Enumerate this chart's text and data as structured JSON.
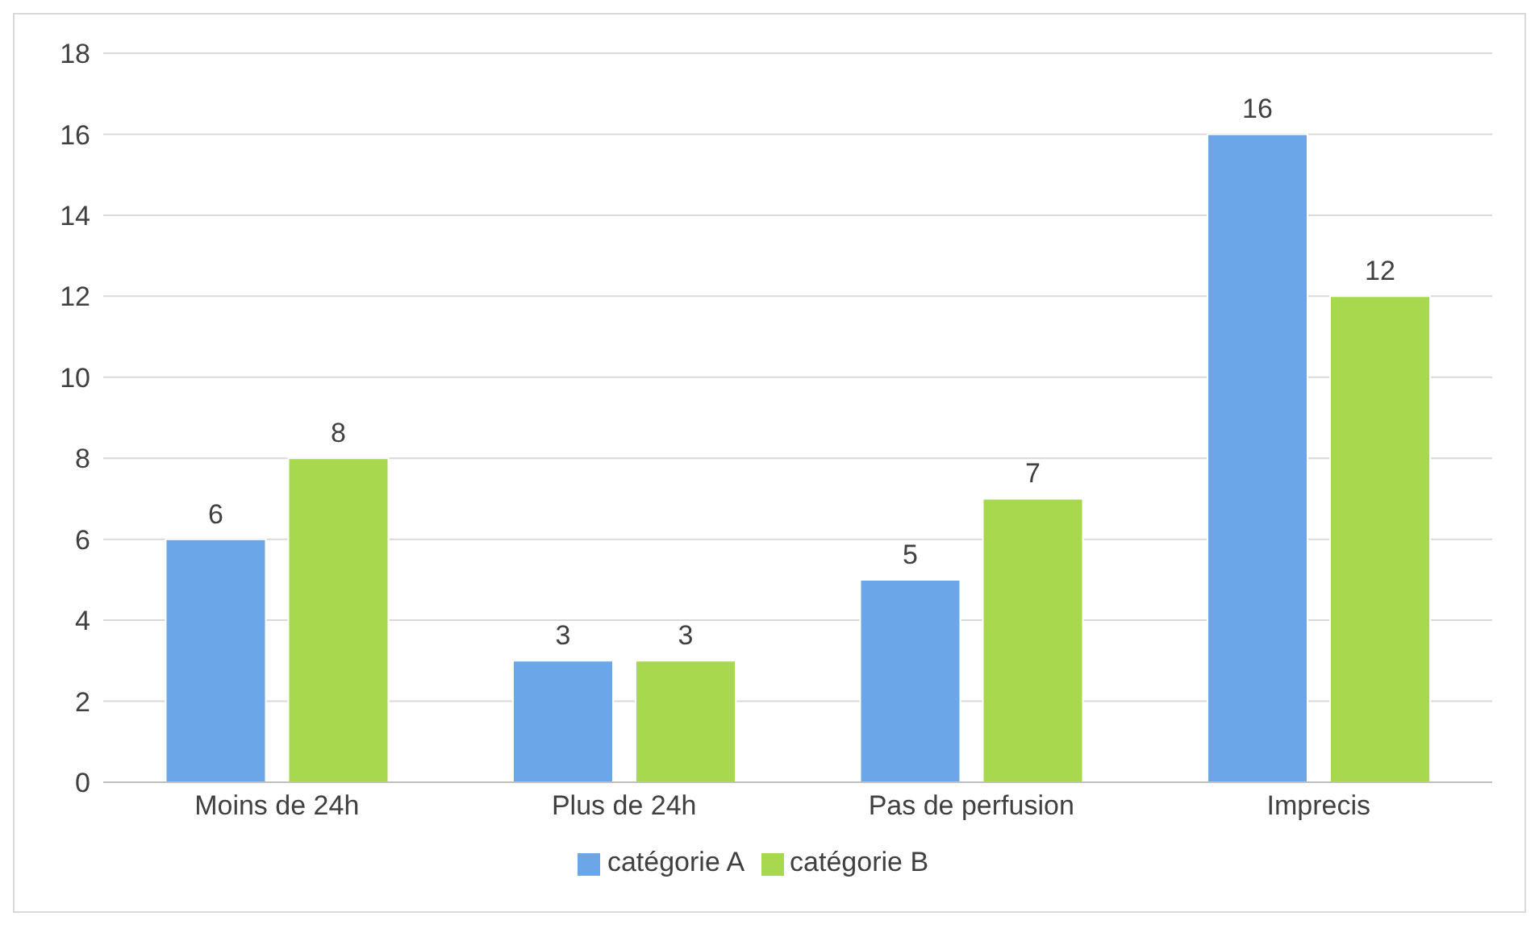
{
  "chart_data": {
    "type": "bar",
    "categories": [
      "Moins de 24h",
      "Plus de 24h",
      "Pas de perfusion",
      "Imprecis"
    ],
    "series": [
      {
        "name": "catégorie A",
        "color": "#6aa6e8",
        "values": [
          6,
          3,
          5,
          16
        ]
      },
      {
        "name": "catégorie B",
        "color": "#a8d84e",
        "values": [
          8,
          3,
          7,
          12
        ]
      }
    ],
    "ylim": [
      0,
      18
    ],
    "yticks": [
      0,
      2,
      4,
      6,
      8,
      10,
      12,
      14,
      16,
      18
    ],
    "grid": "y",
    "legend": "bottom",
    "data_labels": true
  }
}
